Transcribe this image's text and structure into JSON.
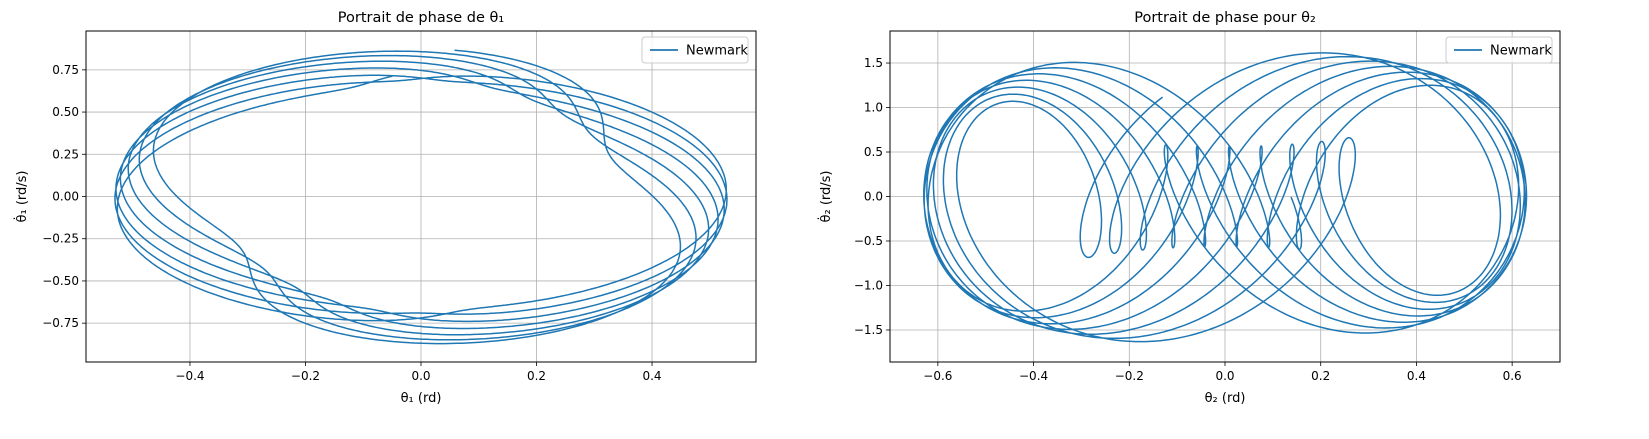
{
  "chart_data": [
    {
      "type": "line",
      "title": "Portrait de phase de θ₁",
      "xlabel": "θ₁ (rd)",
      "ylabel": "θ̇₁ (rd/s)",
      "xlim": [
        -0.58,
        0.58
      ],
      "ylim": [
        -0.98,
        0.98
      ],
      "xticks": [
        -0.4,
        -0.2,
        0.0,
        0.2,
        0.4
      ],
      "xtick_labels": [
        "−0.4",
        "−0.2",
        "0.0",
        "0.2",
        "0.4"
      ],
      "yticks": [
        -0.75,
        -0.5,
        -0.25,
        0.0,
        0.25,
        0.5,
        0.75
      ],
      "ytick_labels": [
        "−0.75",
        "−0.50",
        "−0.25",
        "0.00",
        "0.25",
        "0.50",
        "0.75"
      ],
      "grid": true,
      "legend_position": "top-right",
      "series": [
        {
          "name": "Newmark",
          "color": "#1f77b4",
          "model": {
            "components": [
              {
                "ax": 0.44,
                "ay": 0.79,
                "w": 1.0,
                "phase": 0.0
              },
              {
                "ax": 0.09,
                "ay": 0.1,
                "w": 3.07,
                "phase": 0.7
              }
            ],
            "t_start": 0,
            "t_end": 44,
            "samples": 4000
          }
        }
      ]
    },
    {
      "type": "line",
      "title": "Portrait de phase pour θ₂",
      "xlabel": "θ₂ (rd)",
      "ylabel": "θ̇₂ (rd/s)",
      "xlim": [
        -0.7,
        0.7
      ],
      "ylim": [
        -1.86,
        1.86
      ],
      "xticks": [
        -0.6,
        -0.4,
        -0.2,
        0.0,
        0.2,
        0.4,
        0.6
      ],
      "xtick_labels": [
        "−0.6",
        "−0.4",
        "−0.2",
        "0.0",
        "0.2",
        "0.4",
        "0.6"
      ],
      "yticks": [
        -1.5,
        -1.0,
        -0.5,
        0.0,
        0.5,
        1.0,
        1.5
      ],
      "ytick_labels": [
        "−1.5",
        "−1.0",
        "−0.5",
        "0.0",
        "0.5",
        "1.0",
        "1.5"
      ],
      "grid": true,
      "legend_position": "top-right",
      "series": [
        {
          "name": "Newmark",
          "color": "#1f77b4",
          "model": {
            "components": [
              {
                "ax": 0.47,
                "ay": 0.56,
                "w": 1.0,
                "phase": 0.0
              },
              {
                "ax": 0.16,
                "ay": 1.12,
                "w": 3.07,
                "phase": 2.1
              }
            ],
            "t_start": 0,
            "t_end": 44,
            "samples": 4000
          }
        }
      ]
    }
  ]
}
